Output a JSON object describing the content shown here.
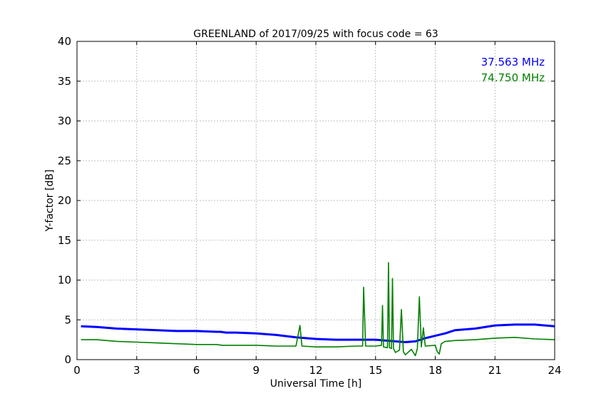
{
  "chart_data": {
    "type": "line",
    "title": "GREENLAND of 2017/09/25 with focus code = 63",
    "xlabel": "Universal Time [h]",
    "ylabel": "Y-factor [dB]",
    "xlim": [
      0,
      24
    ],
    "ylim": [
      0,
      40
    ],
    "xticks": [
      0,
      3,
      6,
      9,
      12,
      15,
      18,
      21,
      24
    ],
    "yticks": [
      0,
      5,
      10,
      15,
      20,
      25,
      30,
      35,
      40
    ],
    "grid": true,
    "legend_position": "top-right",
    "series": [
      {
        "name": "37.563 MHz",
        "color": "#0000ff",
        "x": [
          0.2,
          1,
          2,
          3,
          4,
          5,
          6,
          7,
          7.2,
          7.5,
          8,
          9,
          10,
          11,
          12,
          13,
          14,
          15,
          15.5,
          16,
          16.5,
          17,
          17.5,
          18,
          18.5,
          19,
          20,
          21,
          22,
          23,
          24
        ],
        "y": [
          4.2,
          4.1,
          3.9,
          3.8,
          3.7,
          3.6,
          3.6,
          3.5,
          3.5,
          3.4,
          3.4,
          3.3,
          3.1,
          2.8,
          2.6,
          2.5,
          2.5,
          2.5,
          2.4,
          2.3,
          2.2,
          2.3,
          2.7,
          3.0,
          3.3,
          3.7,
          3.9,
          4.3,
          4.4,
          4.4,
          4.2
        ]
      },
      {
        "name": "74.750 MHz",
        "color": "#008000",
        "x": [
          0.2,
          1,
          2,
          3,
          4,
          5,
          6,
          7,
          7.3,
          8,
          9,
          10,
          10.5,
          11,
          11.2,
          11.3,
          12,
          13,
          14,
          14.35,
          14.4,
          14.5,
          15,
          15.3,
          15.35,
          15.4,
          15.6,
          15.65,
          15.7,
          15.8,
          15.85,
          15.9,
          16,
          16.2,
          16.3,
          16.4,
          16.5,
          16.8,
          17,
          17.1,
          17.2,
          17.3,
          17.4,
          17.5,
          18,
          18.1,
          18.2,
          18.3,
          18.5,
          19,
          20,
          21,
          22,
          23,
          24
        ],
        "y": [
          2.5,
          2.5,
          2.3,
          2.2,
          2.1,
          2.0,
          1.9,
          1.9,
          1.8,
          1.8,
          1.8,
          1.7,
          1.7,
          1.7,
          4.3,
          1.7,
          1.6,
          1.6,
          1.7,
          1.7,
          9.1,
          1.7,
          1.7,
          1.8,
          6.8,
          1.6,
          1.5,
          12.2,
          1.5,
          1.4,
          10.2,
          1.4,
          0.9,
          1.2,
          6.3,
          1.0,
          0.6,
          1.3,
          0.5,
          1.4,
          7.9,
          1.6,
          4.0,
          1.7,
          1.8,
          1.0,
          0.7,
          2.0,
          2.3,
          2.4,
          2.5,
          2.7,
          2.8,
          2.6,
          2.5
        ]
      }
    ]
  }
}
